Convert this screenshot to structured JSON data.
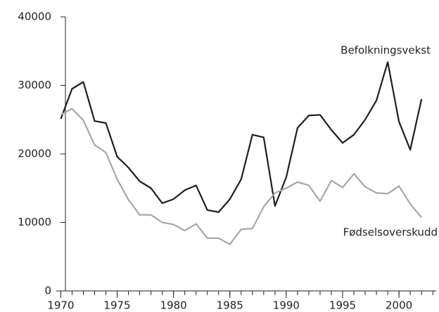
{
  "chart_data": {
    "type": "line",
    "x": [
      1970,
      1971,
      1972,
      1973,
      1974,
      1975,
      1976,
      1977,
      1978,
      1979,
      1980,
      1981,
      1982,
      1983,
      1984,
      1985,
      1986,
      1987,
      1988,
      1989,
      1990,
      1991,
      1992,
      1993,
      1994,
      1995,
      1996,
      1997,
      1998,
      1999,
      2000,
      2001,
      2002
    ],
    "series": [
      {
        "name": "Befolkningsvekst",
        "color": "#1e1e1e",
        "values": [
          25100,
          29500,
          30500,
          24800,
          24500,
          19600,
          18000,
          16000,
          15000,
          12800,
          13400,
          14700,
          15400,
          11800,
          11500,
          13400,
          16300,
          22800,
          22400,
          12400,
          16600,
          23800,
          25600,
          25700,
          23500,
          21600,
          22800,
          25000,
          27800,
          33400,
          24700,
          20600,
          28000
        ]
      },
      {
        "name": "Fødselsoverskudd",
        "color": "#a6a6a6",
        "values": [
          25700,
          26600,
          24900,
          21300,
          20200,
          16300,
          13300,
          11100,
          11100,
          10000,
          9700,
          8800,
          9800,
          7700,
          7700,
          6800,
          9000,
          9100,
          12300,
          14300,
          15000,
          15900,
          15400,
          13100,
          16100,
          15100,
          17100,
          15200,
          14300,
          14200,
          15300,
          12700,
          10700
        ]
      }
    ],
    "xlim": [
      1969.6,
      2003.3
    ],
    "xticks": [
      1970,
      1975,
      1980,
      1985,
      1990,
      1995,
      2000
    ],
    "ylim": [
      0,
      40000
    ],
    "yticks": [
      0,
      10000,
      20000,
      30000,
      40000
    ]
  }
}
